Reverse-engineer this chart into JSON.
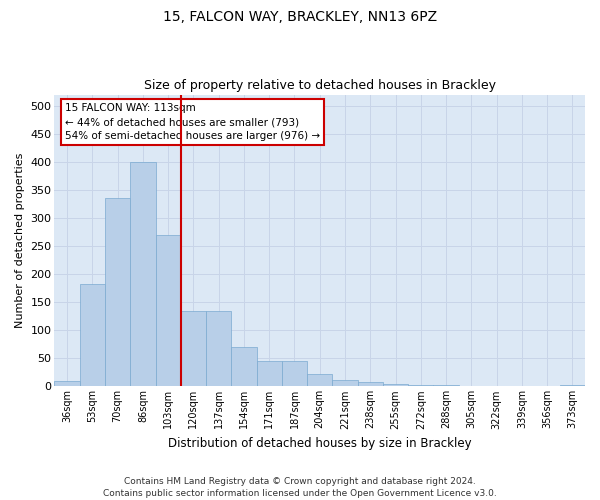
{
  "title": "15, FALCON WAY, BRACKLEY, NN13 6PZ",
  "subtitle": "Size of property relative to detached houses in Brackley",
  "xlabel": "Distribution of detached houses by size in Brackley",
  "ylabel": "Number of detached properties",
  "categories": [
    "36sqm",
    "53sqm",
    "70sqm",
    "86sqm",
    "103sqm",
    "120sqm",
    "137sqm",
    "154sqm",
    "171sqm",
    "187sqm",
    "204sqm",
    "221sqm",
    "238sqm",
    "255sqm",
    "272sqm",
    "288sqm",
    "305sqm",
    "322sqm",
    "339sqm",
    "356sqm",
    "373sqm"
  ],
  "values": [
    10,
    182,
    335,
    400,
    270,
    135,
    135,
    70,
    45,
    45,
    22,
    12,
    8,
    5,
    3,
    2,
    1,
    0,
    0,
    0,
    2
  ],
  "bar_color": "#b8cfe8",
  "bar_edge_color": "#7aaad0",
  "vline_color": "#cc0000",
  "annotation_text": "15 FALCON WAY: 113sqm\n← 44% of detached houses are smaller (793)\n54% of semi-detached houses are larger (976) →",
  "annotation_box_color": "#ffffff",
  "annotation_box_edge": "#cc0000",
  "ylim": [
    0,
    520
  ],
  "yticks": [
    0,
    50,
    100,
    150,
    200,
    250,
    300,
    350,
    400,
    450,
    500
  ],
  "grid_color": "#c8d4e8",
  "bg_color": "#dce8f5",
  "footer_text": "Contains HM Land Registry data © Crown copyright and database right 2024.\nContains public sector information licensed under the Open Government Licence v3.0.",
  "title_fontsize": 10,
  "subtitle_fontsize": 9,
  "annotation_fontsize": 7.5,
  "footer_fontsize": 6.5
}
